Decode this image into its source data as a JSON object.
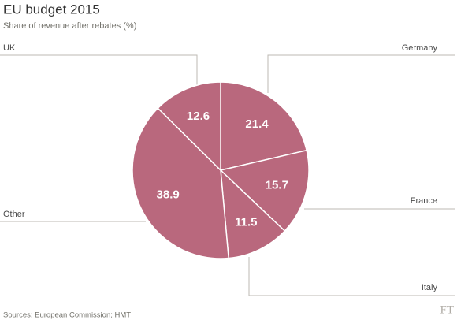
{
  "chart_data": {
    "type": "pie",
    "title": "EU budget 2015",
    "subtitle": "Share of revenue after rebates (%)",
    "categories": [
      "Germany",
      "France",
      "Italy",
      "Other",
      "UK"
    ],
    "values": [
      21.4,
      15.7,
      11.5,
      38.9,
      12.6
    ],
    "color": "#b9687d",
    "source": "Sources: European Commission; HMT",
    "logo": "FT"
  }
}
